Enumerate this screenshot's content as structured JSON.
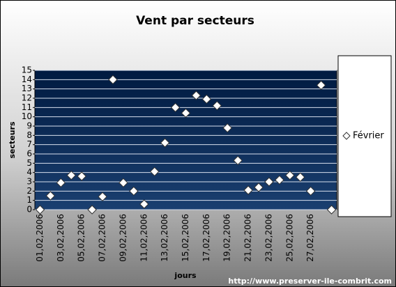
{
  "chart_data": {
    "type": "scatter",
    "title": "Vent par secteurs",
    "x_label": "jours",
    "y_label": "secteurs",
    "footer": "http://www.preserver-ile-combrit.com",
    "categories": [
      "01,02,2006",
      null,
      "03,02,2006",
      null,
      "05,02,2006",
      null,
      "07,02,2006",
      null,
      "09,02,2006",
      null,
      "11,02,2006",
      null,
      "13,02,2006",
      null,
      "15,02,2006",
      null,
      "17,02,2006",
      null,
      "19,02,2006",
      null,
      "21,02,2006",
      null,
      "23,02,2006",
      null,
      "25,02,2006",
      null,
      "27,02,2006",
      null,
      null
    ],
    "series": [
      {
        "name": "Février",
        "color": "#ffffff",
        "values": [
          0,
          1.5,
          2.9,
          3.7,
          3.6,
          0,
          1.4,
          14,
          2.9,
          2,
          0.6,
          4.1,
          7.2,
          11,
          10.4,
          12.3,
          11.9,
          11.2,
          8.8,
          5.3,
          2.1,
          2.4,
          3,
          3.2,
          3.7,
          3.5,
          2,
          13.4,
          0
        ]
      }
    ],
    "ylim": [
      0,
      15
    ],
    "yticks": [
      0,
      1,
      2,
      3,
      4,
      5,
      6,
      7,
      8,
      9,
      10,
      11,
      12,
      13,
      14,
      15
    ],
    "grid": true,
    "legend": "right"
  }
}
